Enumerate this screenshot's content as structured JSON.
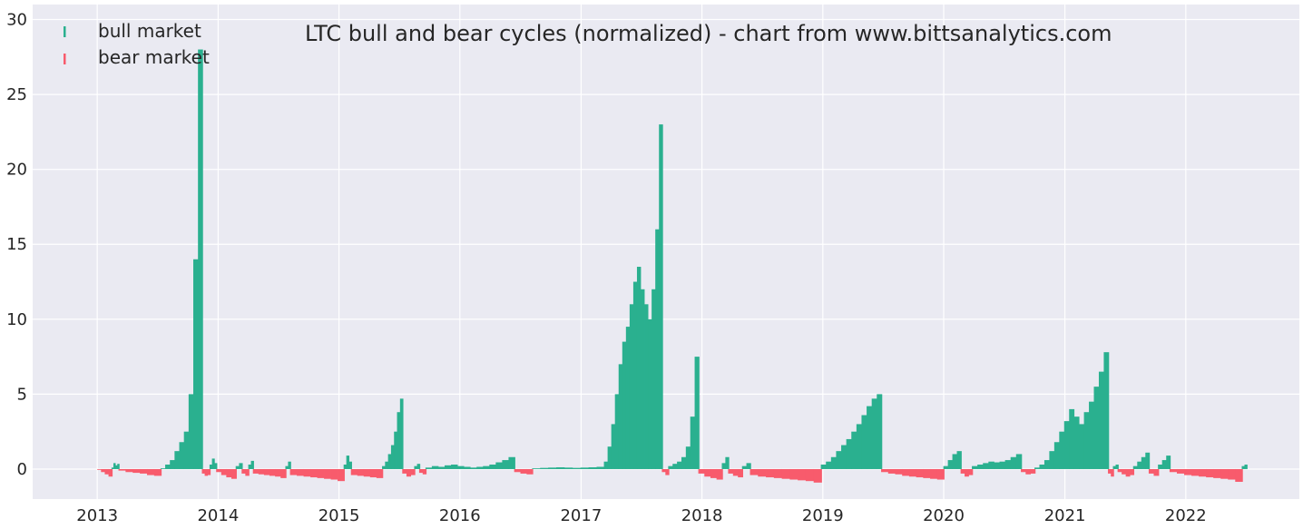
{
  "chart_data": {
    "type": "bar",
    "title": "LTC bull and bear cycles (normalized)  - chart from www.bittsanalytics.com",
    "xlabel": "",
    "ylabel": "",
    "xlim": [
      "2012-06-20",
      "2022-12-10"
    ],
    "ylim": [
      -2,
      31
    ],
    "grid": true,
    "legend_position": "top-left",
    "x_ticks": [
      "2013",
      "2014",
      "2015",
      "2016",
      "2017",
      "2018",
      "2019",
      "2020",
      "2021",
      "2022"
    ],
    "y_ticks": [
      "0",
      "5",
      "10",
      "15",
      "20",
      "25",
      "30"
    ],
    "colors": {
      "background": "#eaeaf2",
      "grid": "#ffffff",
      "bull": "#2ab08f",
      "bear": "#f85b6c"
    },
    "series": [
      {
        "name": "bull market",
        "color": "#2ab08f"
      },
      {
        "name": "bear market",
        "color": "#f85b6c"
      }
    ],
    "segments": [
      {
        "series": "bear market",
        "start": "2013-01-01",
        "end": "2013-02-12",
        "values": [
          -0.05,
          -0.2,
          -0.35,
          -0.5
        ]
      },
      {
        "series": "bull market",
        "start": "2013-02-13",
        "end": "2013-03-05",
        "values": [
          0.1,
          0.4,
          0.25,
          0.35
        ]
      },
      {
        "series": "bear market",
        "start": "2013-03-06",
        "end": "2013-07-10",
        "values": [
          -0.1,
          -0.2,
          -0.25,
          -0.3,
          -0.4,
          -0.45
        ]
      },
      {
        "series": "bull market",
        "start": "2013-07-11",
        "end": "2013-11-12",
        "values": [
          0.05,
          0.3,
          0.6,
          1.2,
          1.8,
          2.5,
          5,
          14,
          28
        ]
      },
      {
        "series": "bear market",
        "start": "2013-11-13",
        "end": "2013-12-05",
        "values": [
          -0.3,
          -0.45,
          -0.4
        ]
      },
      {
        "series": "bull market",
        "start": "2013-12-06",
        "end": "2013-12-25",
        "values": [
          0.3,
          0.7,
          0.4
        ]
      },
      {
        "series": "bear market",
        "start": "2013-12-26",
        "end": "2014-02-22",
        "values": [
          -0.2,
          -0.4,
          -0.55,
          -0.65
        ]
      },
      {
        "series": "bull market",
        "start": "2014-02-23",
        "end": "2014-03-12",
        "values": [
          0.2,
          0.4
        ]
      },
      {
        "series": "bear market",
        "start": "2014-03-13",
        "end": "2014-04-01",
        "values": [
          -0.3,
          -0.45
        ]
      },
      {
        "series": "bull market",
        "start": "2014-04-02",
        "end": "2014-04-15",
        "values": [
          0.3,
          0.55
        ]
      },
      {
        "series": "bear market",
        "start": "2014-04-16",
        "end": "2014-07-22",
        "values": [
          -0.3,
          -0.35,
          -0.4,
          -0.45,
          -0.5,
          -0.6
        ]
      },
      {
        "series": "bull market",
        "start": "2014-07-23",
        "end": "2014-08-05",
        "values": [
          0.2,
          0.5
        ]
      },
      {
        "series": "bear market",
        "start": "2014-08-06",
        "end": "2015-01-14",
        "values": [
          -0.4,
          -0.45,
          -0.5,
          -0.55,
          -0.6,
          -0.65,
          -0.7,
          -0.8
        ]
      },
      {
        "series": "bull market",
        "start": "2015-01-15",
        "end": "2015-02-05",
        "values": [
          0.3,
          0.9,
          0.5
        ]
      },
      {
        "series": "bear market",
        "start": "2015-02-06",
        "end": "2015-05-10",
        "values": [
          -0.4,
          -0.45,
          -0.5,
          -0.55,
          -0.6
        ]
      },
      {
        "series": "bull market",
        "start": "2015-05-11",
        "end": "2015-07-10",
        "values": [
          0.2,
          0.5,
          1.0,
          1.6,
          2.5,
          3.8,
          4.7
        ]
      },
      {
        "series": "bear market",
        "start": "2015-07-11",
        "end": "2015-08-15",
        "values": [
          -0.3,
          -0.5,
          -0.4
        ]
      },
      {
        "series": "bull market",
        "start": "2015-08-16",
        "end": "2015-08-30",
        "values": [
          0.2,
          0.35
        ]
      },
      {
        "series": "bear market",
        "start": "2015-08-31",
        "end": "2015-09-18",
        "values": [
          -0.25,
          -0.35
        ]
      },
      {
        "series": "bull market",
        "start": "2015-09-19",
        "end": "2016-06-12",
        "values": [
          0.1,
          0.2,
          0.15,
          0.25,
          0.3,
          0.2,
          0.15,
          0.1,
          0.15,
          0.2,
          0.3,
          0.45,
          0.6,
          0.8
        ]
      },
      {
        "series": "bear market",
        "start": "2016-06-13",
        "end": "2016-08-05",
        "values": [
          -0.2,
          -0.3,
          -0.35
        ]
      },
      {
        "series": "bull market",
        "start": "2016-08-06",
        "end": "2017-03-10",
        "values": [
          0.05,
          0.08,
          0.1,
          0.12,
          0.1,
          0.08,
          0.1,
          0.12,
          0.15
        ]
      },
      {
        "series": "bull market",
        "start": "2017-03-11",
        "end": "2017-09-01",
        "values": [
          0.5,
          1.5,
          3,
          5,
          7,
          8.5,
          9.5,
          11,
          12.5,
          13.5,
          12,
          11,
          10,
          12,
          16,
          23
        ]
      },
      {
        "series": "bear market",
        "start": "2017-09-02",
        "end": "2017-09-20",
        "values": [
          -0.2,
          -0.4
        ]
      },
      {
        "series": "bull market",
        "start": "2017-09-21",
        "end": "2017-12-20",
        "values": [
          0.2,
          0.35,
          0.5,
          0.8,
          1.5,
          3.5,
          7.5
        ]
      },
      {
        "series": "bear market",
        "start": "2017-12-21",
        "end": "2018-03-01",
        "values": [
          -0.3,
          -0.5,
          -0.6,
          -0.7
        ]
      },
      {
        "series": "bull market",
        "start": "2018-03-02",
        "end": "2018-03-20",
        "values": [
          0.4,
          0.8
        ]
      },
      {
        "series": "bear market",
        "start": "2018-03-21",
        "end": "2018-05-01",
        "values": [
          -0.3,
          -0.45,
          -0.55
        ]
      },
      {
        "series": "bull market",
        "start": "2018-05-02",
        "end": "2018-05-25",
        "values": [
          0.2,
          0.4
        ]
      },
      {
        "series": "bear market",
        "start": "2018-05-26",
        "end": "2018-12-25",
        "values": [
          -0.4,
          -0.5,
          -0.55,
          -0.6,
          -0.65,
          -0.7,
          -0.75,
          -0.8,
          -0.9
        ]
      },
      {
        "series": "bull market",
        "start": "2018-12-26",
        "end": "2019-06-25",
        "values": [
          0.3,
          0.5,
          0.8,
          1.2,
          1.6,
          2.0,
          2.5,
          3.0,
          3.6,
          4.2,
          4.7,
          5.0
        ]
      },
      {
        "series": "bear market",
        "start": "2019-06-26",
        "end": "2019-12-30",
        "values": [
          -0.2,
          -0.3,
          -0.35,
          -0.45,
          -0.5,
          -0.55,
          -0.6,
          -0.65,
          -0.7
        ]
      },
      {
        "series": "bull market",
        "start": "2019-12-31",
        "end": "2020-02-20",
        "values": [
          0.2,
          0.6,
          1.0,
          1.2
        ]
      },
      {
        "series": "bear market",
        "start": "2020-02-21",
        "end": "2020-03-25",
        "values": [
          -0.3,
          -0.5,
          -0.4
        ]
      },
      {
        "series": "bull market",
        "start": "2020-03-26",
        "end": "2020-08-20",
        "values": [
          0.2,
          0.3,
          0.4,
          0.5,
          0.45,
          0.5,
          0.6,
          0.8,
          1.0
        ]
      },
      {
        "series": "bear market",
        "start": "2020-08-21",
        "end": "2020-09-30",
        "values": [
          -0.2,
          -0.35,
          -0.3
        ]
      },
      {
        "series": "bull market",
        "start": "2020-10-01",
        "end": "2021-05-10",
        "values": [
          0.1,
          0.3,
          0.6,
          1.2,
          1.8,
          2.5,
          3.2,
          4.0,
          3.5,
          3.0,
          3.8,
          4.5,
          5.5,
          6.5,
          7.8
        ]
      },
      {
        "series": "bear market",
        "start": "2021-05-11",
        "end": "2021-05-25",
        "values": [
          -0.3,
          -0.5
        ]
      },
      {
        "series": "bull market",
        "start": "2021-05-26",
        "end": "2021-06-08",
        "values": [
          0.2,
          0.3
        ]
      },
      {
        "series": "bear market",
        "start": "2021-06-09",
        "end": "2021-07-25",
        "values": [
          -0.2,
          -0.35,
          -0.5,
          -0.4
        ]
      },
      {
        "series": "bull market",
        "start": "2021-07-26",
        "end": "2021-09-10",
        "values": [
          0.2,
          0.5,
          0.8,
          1.1
        ]
      },
      {
        "series": "bear market",
        "start": "2021-09-11",
        "end": "2021-10-08",
        "values": [
          -0.3,
          -0.45
        ]
      },
      {
        "series": "bull market",
        "start": "2021-10-09",
        "end": "2021-11-12",
        "values": [
          0.3,
          0.6,
          0.9
        ]
      },
      {
        "series": "bear market",
        "start": "2021-11-13",
        "end": "2022-06-18",
        "values": [
          -0.2,
          -0.3,
          -0.4,
          -0.45,
          -0.5,
          -0.55,
          -0.6,
          -0.65,
          -0.7,
          -0.85
        ]
      },
      {
        "series": "bull market",
        "start": "2022-06-19",
        "end": "2022-07-02",
        "values": [
          0.2,
          0.3
        ]
      }
    ]
  }
}
